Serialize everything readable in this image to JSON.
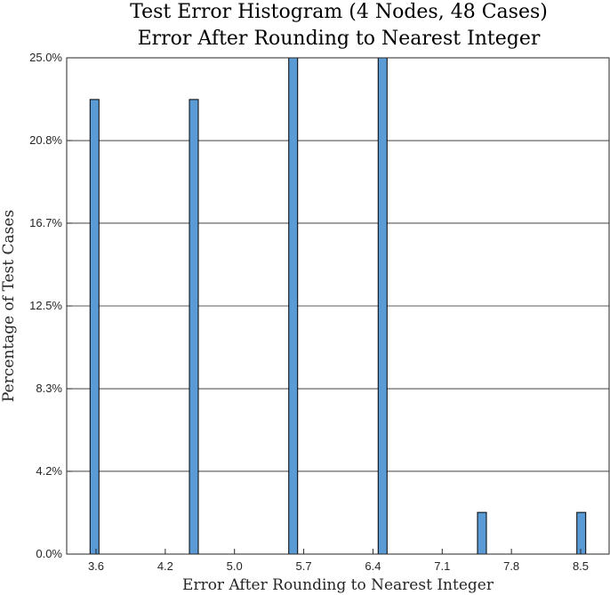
{
  "chart_data": {
    "type": "bar",
    "title": "Test Error Histogram (4 Nodes, 48 Cases)",
    "subtitle": "Error After Rounding to Nearest Integer",
    "xlabel": "Error After Rounding to Nearest Integer",
    "ylabel": "Percentage of Test Cases",
    "x_ticks": [
      "3.6",
      "4.2",
      "5.0",
      "5.7",
      "6.4",
      "7.1",
      "7.8",
      "8.5"
    ],
    "y_ticks": [
      "0.0%",
      "4.2%",
      "8.3%",
      "12.5%",
      "16.7%",
      "20.8%",
      "25.0%"
    ],
    "y_tick_values": [
      0,
      4.17,
      8.33,
      12.5,
      16.67,
      20.83,
      25.0
    ],
    "xlim": [
      3.32,
      8.78
    ],
    "ylim": [
      0,
      25
    ],
    "grid": "horizontal",
    "bars": [
      {
        "x": 3.6,
        "value": 22.9
      },
      {
        "x": 4.6,
        "value": 22.9
      },
      {
        "x": 5.6,
        "value": 25.0
      },
      {
        "x": 6.5,
        "value": 25.0
      },
      {
        "x": 7.5,
        "value": 2.1
      },
      {
        "x": 8.5,
        "value": 2.1
      }
    ],
    "colors": {
      "bar_fill": "#5b9bd5",
      "bar_stroke": "#000000",
      "grid": "#262626",
      "axis": "#262626"
    }
  }
}
